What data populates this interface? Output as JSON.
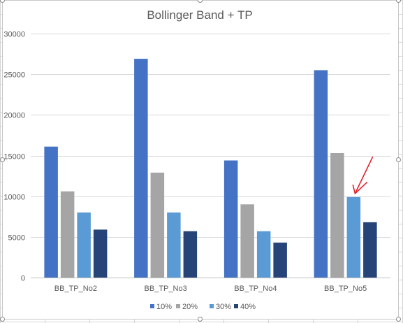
{
  "chart_data": {
    "type": "bar",
    "title": "Bollinger Band + TP",
    "xlabel": "",
    "ylabel": "",
    "categories": [
      "BB_TP_No2",
      "BB_TP_No3",
      "BB_TP_No4",
      "BB_TP_No5"
    ],
    "series": [
      {
        "name": "10%",
        "color": "#4472c4",
        "values": [
          16100,
          26900,
          14400,
          25500
        ]
      },
      {
        "name": "20%",
        "color": "#a5a5a5",
        "values": [
          10600,
          12900,
          9000,
          15300
        ]
      },
      {
        "name": "30%",
        "color": "#5b9bd5",
        "values": [
          8000,
          8000,
          5700,
          9900
        ]
      },
      {
        "name": "40%",
        "color": "#264478",
        "values": [
          5900,
          5700,
          4300,
          6800
        ]
      }
    ],
    "ylim": [
      0,
      30000
    ],
    "yticks": [
      0,
      5000,
      10000,
      15000,
      20000,
      25000,
      30000
    ],
    "grid": true,
    "legend_position": "bottom",
    "annotation": {
      "type": "arrow",
      "color": "#e0202a",
      "target_category": "BB_TP_No5",
      "target_series": "30%"
    }
  }
}
